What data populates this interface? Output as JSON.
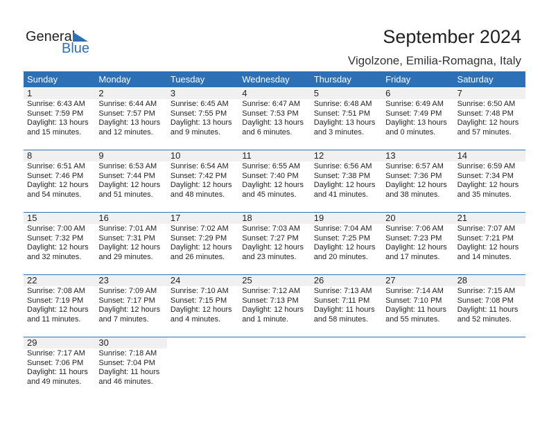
{
  "logo": {
    "word1": "General",
    "word2": "Blue",
    "color": "#2e70b5"
  },
  "title": "September 2024",
  "location": "Vigolzone, Emilia-Romagna, Italy",
  "weekdays": [
    "Sunday",
    "Monday",
    "Tuesday",
    "Wednesday",
    "Thursday",
    "Friday",
    "Saturday"
  ],
  "first_weekday_index": 0,
  "days": [
    {
      "day": "1",
      "sunrise": "Sunrise: 6:43 AM",
      "sunset": "Sunset: 7:59 PM",
      "daylight1": "Daylight: 13 hours",
      "daylight2": "and 15 minutes."
    },
    {
      "day": "2",
      "sunrise": "Sunrise: 6:44 AM",
      "sunset": "Sunset: 7:57 PM",
      "daylight1": "Daylight: 13 hours",
      "daylight2": "and 12 minutes."
    },
    {
      "day": "3",
      "sunrise": "Sunrise: 6:45 AM",
      "sunset": "Sunset: 7:55 PM",
      "daylight1": "Daylight: 13 hours",
      "daylight2": "and 9 minutes."
    },
    {
      "day": "4",
      "sunrise": "Sunrise: 6:47 AM",
      "sunset": "Sunset: 7:53 PM",
      "daylight1": "Daylight: 13 hours",
      "daylight2": "and 6 minutes."
    },
    {
      "day": "5",
      "sunrise": "Sunrise: 6:48 AM",
      "sunset": "Sunset: 7:51 PM",
      "daylight1": "Daylight: 13 hours",
      "daylight2": "and 3 minutes."
    },
    {
      "day": "6",
      "sunrise": "Sunrise: 6:49 AM",
      "sunset": "Sunset: 7:49 PM",
      "daylight1": "Daylight: 13 hours",
      "daylight2": "and 0 minutes."
    },
    {
      "day": "7",
      "sunrise": "Sunrise: 6:50 AM",
      "sunset": "Sunset: 7:48 PM",
      "daylight1": "Daylight: 12 hours",
      "daylight2": "and 57 minutes."
    },
    {
      "day": "8",
      "sunrise": "Sunrise: 6:51 AM",
      "sunset": "Sunset: 7:46 PM",
      "daylight1": "Daylight: 12 hours",
      "daylight2": "and 54 minutes."
    },
    {
      "day": "9",
      "sunrise": "Sunrise: 6:53 AM",
      "sunset": "Sunset: 7:44 PM",
      "daylight1": "Daylight: 12 hours",
      "daylight2": "and 51 minutes."
    },
    {
      "day": "10",
      "sunrise": "Sunrise: 6:54 AM",
      "sunset": "Sunset: 7:42 PM",
      "daylight1": "Daylight: 12 hours",
      "daylight2": "and 48 minutes."
    },
    {
      "day": "11",
      "sunrise": "Sunrise: 6:55 AM",
      "sunset": "Sunset: 7:40 PM",
      "daylight1": "Daylight: 12 hours",
      "daylight2": "and 45 minutes."
    },
    {
      "day": "12",
      "sunrise": "Sunrise: 6:56 AM",
      "sunset": "Sunset: 7:38 PM",
      "daylight1": "Daylight: 12 hours",
      "daylight2": "and 41 minutes."
    },
    {
      "day": "13",
      "sunrise": "Sunrise: 6:57 AM",
      "sunset": "Sunset: 7:36 PM",
      "daylight1": "Daylight: 12 hours",
      "daylight2": "and 38 minutes."
    },
    {
      "day": "14",
      "sunrise": "Sunrise: 6:59 AM",
      "sunset": "Sunset: 7:34 PM",
      "daylight1": "Daylight: 12 hours",
      "daylight2": "and 35 minutes."
    },
    {
      "day": "15",
      "sunrise": "Sunrise: 7:00 AM",
      "sunset": "Sunset: 7:32 PM",
      "daylight1": "Daylight: 12 hours",
      "daylight2": "and 32 minutes."
    },
    {
      "day": "16",
      "sunrise": "Sunrise: 7:01 AM",
      "sunset": "Sunset: 7:31 PM",
      "daylight1": "Daylight: 12 hours",
      "daylight2": "and 29 minutes."
    },
    {
      "day": "17",
      "sunrise": "Sunrise: 7:02 AM",
      "sunset": "Sunset: 7:29 PM",
      "daylight1": "Daylight: 12 hours",
      "daylight2": "and 26 minutes."
    },
    {
      "day": "18",
      "sunrise": "Sunrise: 7:03 AM",
      "sunset": "Sunset: 7:27 PM",
      "daylight1": "Daylight: 12 hours",
      "daylight2": "and 23 minutes."
    },
    {
      "day": "19",
      "sunrise": "Sunrise: 7:04 AM",
      "sunset": "Sunset: 7:25 PM",
      "daylight1": "Daylight: 12 hours",
      "daylight2": "and 20 minutes."
    },
    {
      "day": "20",
      "sunrise": "Sunrise: 7:06 AM",
      "sunset": "Sunset: 7:23 PM",
      "daylight1": "Daylight: 12 hours",
      "daylight2": "and 17 minutes."
    },
    {
      "day": "21",
      "sunrise": "Sunrise: 7:07 AM",
      "sunset": "Sunset: 7:21 PM",
      "daylight1": "Daylight: 12 hours",
      "daylight2": "and 14 minutes."
    },
    {
      "day": "22",
      "sunrise": "Sunrise: 7:08 AM",
      "sunset": "Sunset: 7:19 PM",
      "daylight1": "Daylight: 12 hours",
      "daylight2": "and 11 minutes."
    },
    {
      "day": "23",
      "sunrise": "Sunrise: 7:09 AM",
      "sunset": "Sunset: 7:17 PM",
      "daylight1": "Daylight: 12 hours",
      "daylight2": "and 7 minutes."
    },
    {
      "day": "24",
      "sunrise": "Sunrise: 7:10 AM",
      "sunset": "Sunset: 7:15 PM",
      "daylight1": "Daylight: 12 hours",
      "daylight2": "and 4 minutes."
    },
    {
      "day": "25",
      "sunrise": "Sunrise: 7:12 AM",
      "sunset": "Sunset: 7:13 PM",
      "daylight1": "Daylight: 12 hours",
      "daylight2": "and 1 minute."
    },
    {
      "day": "26",
      "sunrise": "Sunrise: 7:13 AM",
      "sunset": "Sunset: 7:11 PM",
      "daylight1": "Daylight: 11 hours",
      "daylight2": "and 58 minutes."
    },
    {
      "day": "27",
      "sunrise": "Sunrise: 7:14 AM",
      "sunset": "Sunset: 7:10 PM",
      "daylight1": "Daylight: 11 hours",
      "daylight2": "and 55 minutes."
    },
    {
      "day": "28",
      "sunrise": "Sunrise: 7:15 AM",
      "sunset": "Sunset: 7:08 PM",
      "daylight1": "Daylight: 11 hours",
      "daylight2": "and 52 minutes."
    },
    {
      "day": "29",
      "sunrise": "Sunrise: 7:17 AM",
      "sunset": "Sunset: 7:06 PM",
      "daylight1": "Daylight: 11 hours",
      "daylight2": "and 49 minutes."
    },
    {
      "day": "30",
      "sunrise": "Sunrise: 7:18 AM",
      "sunset": "Sunset: 7:04 PM",
      "daylight1": "Daylight: 11 hours",
      "daylight2": "and 46 minutes."
    }
  ]
}
